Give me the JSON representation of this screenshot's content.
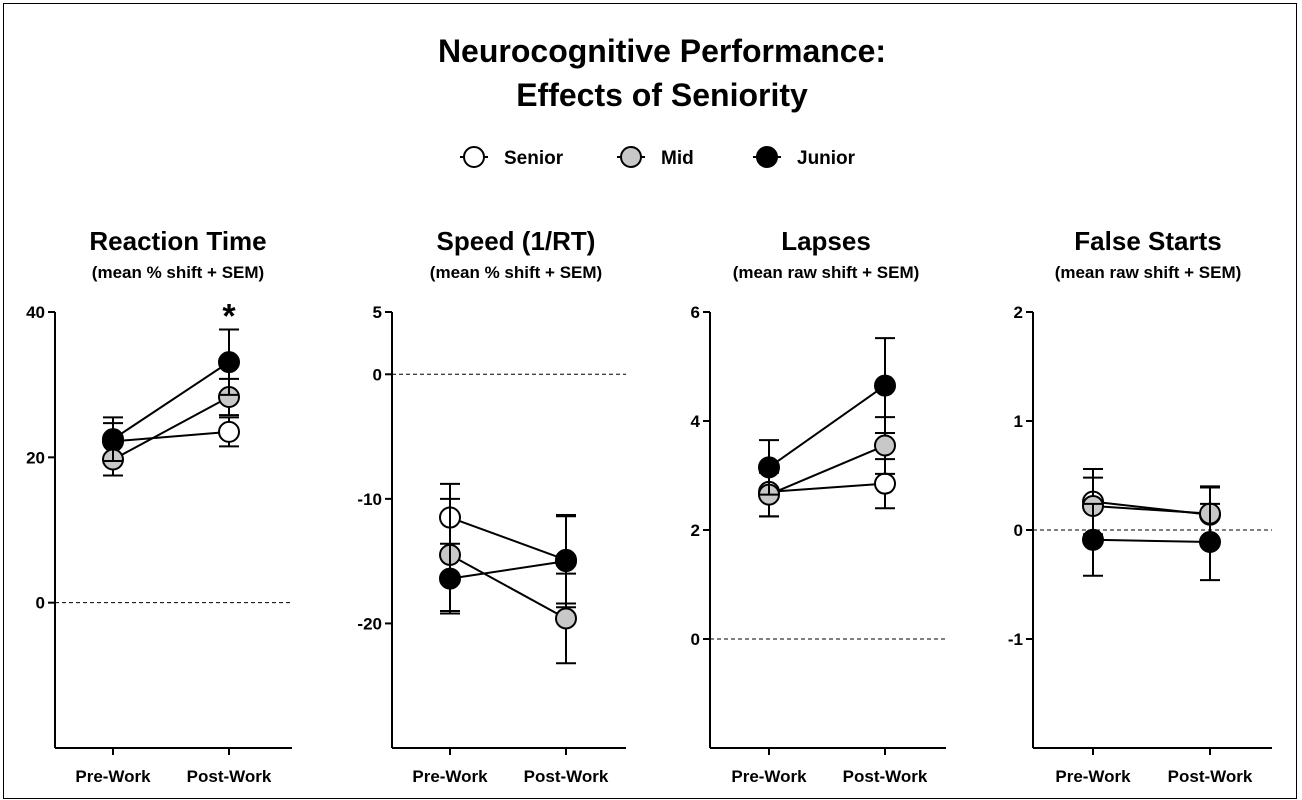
{
  "title_line1": "Neurocognitive Performance:",
  "title_line2": "Effects of Seniority",
  "colors": {
    "Senior": "#ffffff",
    "Mid": "#c8c8c8",
    "Junior": "#000000"
  },
  "chart_data": [
    {
      "type": "line",
      "title": "Reaction Time",
      "subtitle": "(mean % shift + SEM)",
      "categories": [
        "Pre-Work",
        "Post-Work"
      ],
      "ylim": [
        -20,
        40
      ],
      "yticks": [
        40,
        20,
        0
      ],
      "reference_line": 0,
      "annotation": {
        "text": "*",
        "category": "Post-Work"
      },
      "series": [
        {
          "name": "Senior",
          "values": [
            22.2,
            23.5
          ],
          "sem": [
            2.5,
            2.0
          ]
        },
        {
          "name": "Mid",
          "values": [
            19.7,
            28.3
          ],
          "sem": [
            2.2,
            2.5
          ]
        },
        {
          "name": "Junior",
          "values": [
            22.5,
            33.1
          ],
          "sem": [
            3.0,
            4.5
          ]
        }
      ]
    },
    {
      "type": "line",
      "title": "Speed (1/RT)",
      "subtitle": "(mean % shift + SEM)",
      "categories": [
        "Pre-Work",
        "Post-Work"
      ],
      "ylim": [
        -30,
        5
      ],
      "yticks": [
        5,
        0,
        -10,
        -20
      ],
      "reference_line": 0,
      "series": [
        {
          "name": "Senior",
          "values": [
            -11.5,
            -14.9
          ],
          "sem": [
            2.7,
            3.5
          ]
        },
        {
          "name": "Mid",
          "values": [
            -14.5,
            -19.6
          ],
          "sem": [
            4.5,
            3.6
          ]
        },
        {
          "name": "Junior",
          "values": [
            -16.4,
            -15.0
          ],
          "sem": [
            2.8,
            3.7
          ]
        }
      ]
    },
    {
      "type": "line",
      "title": "Lapses",
      "subtitle": "(mean raw shift + SEM)",
      "categories": [
        "Pre-Work",
        "Post-Work"
      ],
      "ylim": [
        -2,
        6
      ],
      "yticks": [
        6,
        4,
        2,
        0
      ],
      "reference_line": 0,
      "series": [
        {
          "name": "Senior",
          "values": [
            2.7,
            2.85
          ],
          "sem": [
            0.45,
            0.45
          ]
        },
        {
          "name": "Mid",
          "values": [
            2.65,
            3.55
          ],
          "sem": [
            0.4,
            0.52
          ]
        },
        {
          "name": "Junior",
          "values": [
            3.15,
            4.65
          ],
          "sem": [
            0.5,
            0.87
          ]
        }
      ]
    },
    {
      "type": "line",
      "title": "False Starts",
      "subtitle": "(mean raw shift + SEM)",
      "categories": [
        "Pre-Work",
        "Post-Work"
      ],
      "ylim": [
        -2,
        2
      ],
      "yticks": [
        2,
        1,
        0,
        -1
      ],
      "reference_line": 0,
      "series": [
        {
          "name": "Senior",
          "values": [
            0.26,
            0.14
          ],
          "sem": [
            0.3,
            0.25
          ]
        },
        {
          "name": "Mid",
          "values": [
            0.22,
            0.15
          ],
          "sem": [
            0.26,
            0.25
          ]
        },
        {
          "name": "Junior",
          "values": [
            -0.09,
            -0.11
          ],
          "sem": [
            0.33,
            0.35
          ]
        }
      ]
    }
  ]
}
